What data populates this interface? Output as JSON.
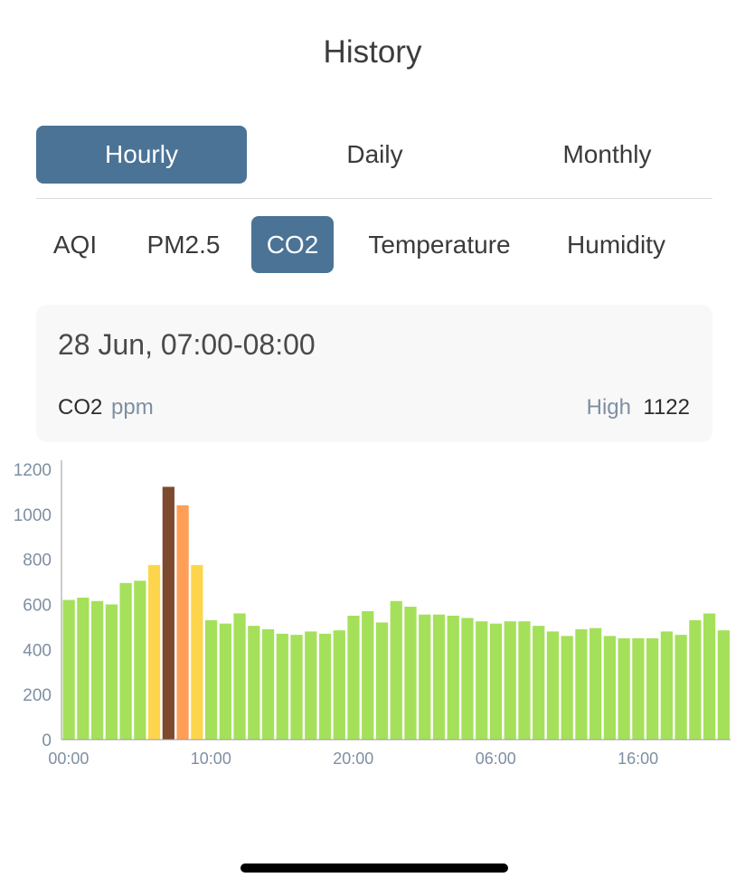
{
  "page": {
    "title": "History"
  },
  "period_tabs": [
    {
      "label": "Hourly",
      "active": true
    },
    {
      "label": "Daily",
      "active": false
    },
    {
      "label": "Monthly",
      "active": false
    }
  ],
  "metric_tabs": [
    {
      "label": "AQI",
      "active": false
    },
    {
      "label": "PM2.5",
      "active": false
    },
    {
      "label": "CO2",
      "active": true
    },
    {
      "label": "Temperature",
      "active": false
    },
    {
      "label": "Humidity",
      "active": false
    }
  ],
  "info": {
    "date": "28 Jun, 07:00-08:00",
    "metric": "CO2",
    "unit": "ppm",
    "high_label": "High",
    "high_value": "1122"
  },
  "colors": {
    "accent": "#4a7396",
    "good": "#a5e05a",
    "moderate": "#fdd54c",
    "high": "#ff9f57",
    "very_high": "#7d4a2f",
    "axis_text": "#7e8fa3"
  },
  "chart_data": {
    "type": "bar",
    "title": "",
    "xlabel": "",
    "ylabel": "",
    "ylim": [
      0,
      1240
    ],
    "yticks": [
      0,
      200,
      400,
      600,
      800,
      1000,
      1200
    ],
    "x_tick_labels": [
      "00:00",
      "10:00",
      "20:00",
      "06:00",
      "16:00"
    ],
    "x_tick_indices": [
      0,
      10,
      20,
      30,
      40
    ],
    "categories": [
      "00:00",
      "01:00",
      "02:00",
      "03:00",
      "04:00",
      "05:00",
      "06:00",
      "07:00",
      "08:00",
      "09:00",
      "10:00",
      "11:00",
      "12:00",
      "13:00",
      "14:00",
      "15:00",
      "16:00",
      "17:00",
      "18:00",
      "19:00",
      "20:00",
      "21:00",
      "22:00",
      "23:00",
      "00:00",
      "01:00",
      "02:00",
      "03:00",
      "04:00",
      "05:00",
      "06:00",
      "07:00",
      "08:00",
      "09:00",
      "10:00",
      "11:00",
      "12:00",
      "13:00",
      "14:00",
      "15:00",
      "16:00",
      "17:00",
      "18:00",
      "19:00",
      "20:00",
      "21:00",
      "22:00"
    ],
    "values": [
      620,
      630,
      615,
      600,
      695,
      705,
      775,
      1122,
      1040,
      775,
      530,
      515,
      560,
      505,
      490,
      470,
      465,
      480,
      470,
      485,
      550,
      570,
      520,
      615,
      590,
      555,
      555,
      550,
      540,
      525,
      515,
      525,
      525,
      505,
      480,
      460,
      490,
      495,
      460,
      450,
      450,
      450,
      480,
      465,
      530,
      560,
      485
    ],
    "bar_colors": [
      "good",
      "good",
      "good",
      "good",
      "good",
      "good",
      "moderate",
      "very_high",
      "high",
      "moderate",
      "good",
      "good",
      "good",
      "good",
      "good",
      "good",
      "good",
      "good",
      "good",
      "good",
      "good",
      "good",
      "good",
      "good",
      "good",
      "good",
      "good",
      "good",
      "good",
      "good",
      "good",
      "good",
      "good",
      "good",
      "good",
      "good",
      "good",
      "good",
      "good",
      "good",
      "good",
      "good",
      "good",
      "good",
      "good",
      "good",
      "good"
    ],
    "grid": false
  }
}
